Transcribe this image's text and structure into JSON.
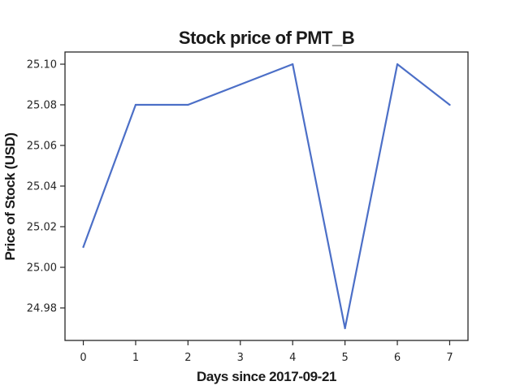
{
  "chart_data": {
    "type": "line",
    "title": "Stock price of PMT_B",
    "xlabel": "Days since 2017-09-21",
    "ylabel": "Price of Stock (USD)",
    "x": [
      0,
      1,
      2,
      3,
      4,
      5,
      6,
      7
    ],
    "series": [
      {
        "values": [
          25.01,
          25.08,
          25.08,
          25.09,
          25.1,
          24.97,
          25.1,
          25.08
        ],
        "color": "#4c6fc7"
      }
    ],
    "xlim": [
      -0.35,
      7.35
    ],
    "ylim": [
      24.964,
      25.106
    ],
    "xticks": [
      0,
      1,
      2,
      3,
      4,
      5,
      6,
      7
    ],
    "xtick_labels": [
      "0",
      "1",
      "2",
      "3",
      "4",
      "5",
      "6",
      "7"
    ],
    "yticks": [
      24.98,
      25.0,
      25.02,
      25.04,
      25.06,
      25.08,
      25.1
    ],
    "ytick_labels": [
      "24.98",
      "25.00",
      "25.02",
      "25.04",
      "25.06",
      "25.08",
      "25.10"
    ],
    "grid": false,
    "legend": false
  }
}
